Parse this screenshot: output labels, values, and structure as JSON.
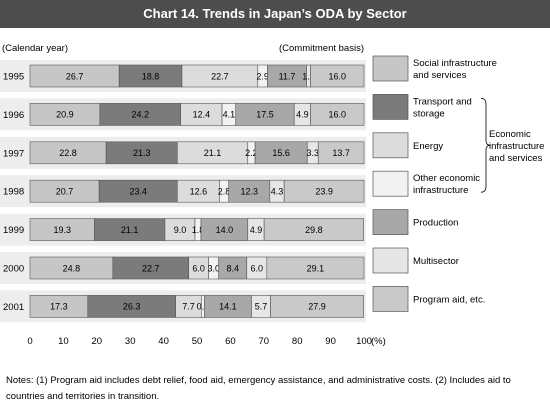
{
  "title": "Chart 14. Trends in Japan’s ODA by Sector",
  "colors": {
    "title_bar": "#4d4d4d",
    "band": "#ededed",
    "border": "#555555"
  },
  "chart_data": {
    "type": "bar",
    "orientation": "horizontal",
    "stacked": true,
    "y_caption": "(Calendar year)",
    "basis_caption": "(Commitment basis)",
    "x_unit": "(%)",
    "xlim": [
      0,
      100
    ],
    "x_ticks": [
      "0",
      "10",
      "20",
      "30",
      "40",
      "50",
      "60",
      "70",
      "80",
      "90",
      "100"
    ],
    "categories": [
      "1995",
      "1996",
      "1997",
      "1998",
      "1999",
      "2000",
      "2001"
    ],
    "series": [
      {
        "name": "Social infrastructure and services",
        "color": "#c6c6c6",
        "values": [
          26.7,
          20.9,
          22.8,
          20.7,
          19.3,
          24.8,
          17.3
        ]
      },
      {
        "name": "Transport and storage",
        "color": "#7b7b7b",
        "values": [
          18.8,
          24.2,
          21.3,
          23.4,
          21.1,
          22.7,
          26.3
        ]
      },
      {
        "name": "Energy",
        "color": "#dcdcdc",
        "values": [
          22.7,
          12.4,
          21.1,
          12.6,
          9.0,
          6.0,
          7.7
        ]
      },
      {
        "name": "Other economic infrastructure",
        "color": "#f2f2f2",
        "values": [
          2.9,
          4.1,
          2.2,
          2.8,
          1.8,
          3.0,
          0.9
        ]
      },
      {
        "name": "Production",
        "color": "#a8a8a8",
        "values": [
          11.7,
          17.5,
          15.6,
          12.3,
          14.0,
          8.4,
          14.1
        ]
      },
      {
        "name": "Multisector",
        "color": "#e6e6e6",
        "values": [
          1.2,
          4.9,
          3.3,
          4.3,
          4.9,
          6.0,
          5.7
        ]
      },
      {
        "name": "Program aid, etc.",
        "color": "#c9c9c9",
        "values": [
          16.0,
          16.0,
          13.7,
          23.9,
          29.8,
          29.1,
          27.9
        ]
      }
    ],
    "labels": [
      [
        "26.7",
        "18.8",
        "22.7",
        "2.9",
        "11.7",
        "1.2",
        "16.0"
      ],
      [
        "20.9",
        "24.2",
        "12.4",
        "4.1",
        "17.5",
        "4.9",
        "16.0"
      ],
      [
        "22.8",
        "21.3",
        "21.1",
        "2.2",
        "15.6",
        "3.3",
        "13.7"
      ],
      [
        "20.7",
        "23.4",
        "12.6",
        "2.8",
        "12.3",
        "4.3",
        "23.9"
      ],
      [
        "19.3",
        "21.1",
        "9.0",
        "1.8",
        "14.0",
        "4.9",
        "29.8"
      ],
      [
        "24.8",
        "22.7",
        "6.0",
        "3.0",
        "8.4",
        "6.0",
        "29.1"
      ],
      [
        "17.3",
        "26.3",
        "7.7",
        "0.9",
        "14.1",
        "5.7",
        "27.9"
      ]
    ],
    "legend_labels": [
      [
        "Social infrastructure",
        "and services"
      ],
      [
        "Transport and",
        "storage"
      ],
      [
        "Energy"
      ],
      [
        "Other economic",
        "infrastructure"
      ],
      [
        "Production"
      ],
      [
        "Multisector"
      ],
      [
        "Program aid, etc."
      ]
    ],
    "legend_group_label": [
      "Economic",
      "infrastructure",
      "and services"
    ],
    "legend_position": "right"
  },
  "notes": [
    "Notes: (1) Program aid includes debt relief, food aid, emergency assistance, and administrative costs.  (2) Includes aid to",
    "countries and territories in transition."
  ]
}
